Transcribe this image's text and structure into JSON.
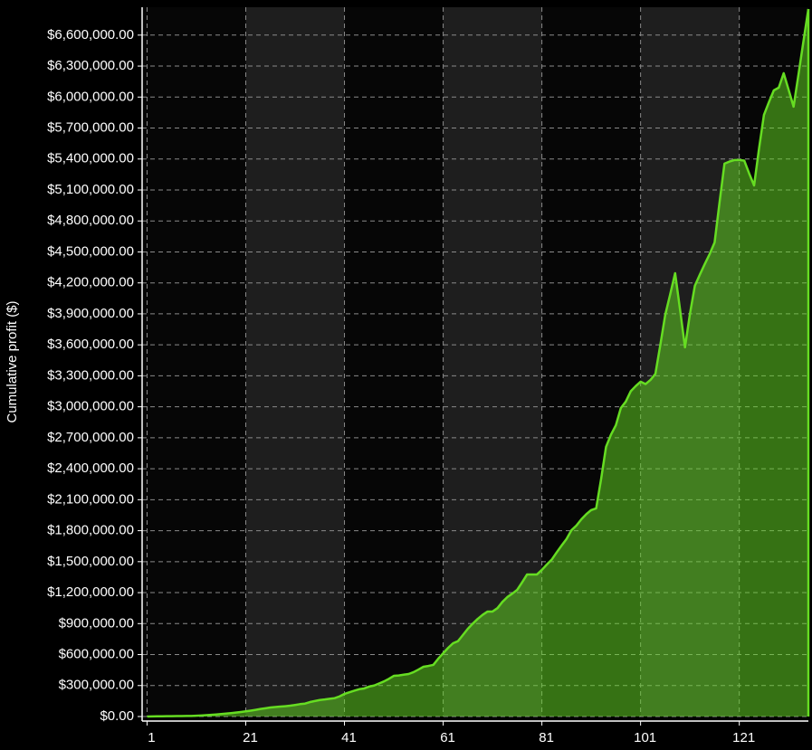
{
  "chart_data": {
    "type": "area",
    "y_label": "Cumulative profit ($)",
    "color": "#66dd22",
    "x": [
      1,
      2,
      3,
      4,
      5,
      6,
      7,
      8,
      9,
      10,
      11,
      12,
      13,
      14,
      15,
      16,
      17,
      18,
      19,
      20,
      21,
      22,
      23,
      24,
      25,
      26,
      27,
      28,
      29,
      30,
      31,
      32,
      33,
      34,
      35,
      36,
      37,
      38,
      39,
      40,
      41,
      42,
      43,
      44,
      45,
      46,
      47,
      48,
      49,
      50,
      51,
      52,
      53,
      54,
      55,
      56,
      57,
      58,
      59,
      60,
      61,
      62,
      63,
      64,
      65,
      66,
      67,
      68,
      69,
      70,
      71,
      72,
      73,
      74,
      75,
      76,
      77,
      78,
      79,
      80,
      81,
      82,
      83,
      84,
      85,
      86,
      87,
      88,
      89,
      90,
      91,
      92,
      93,
      94,
      95,
      96,
      97,
      98,
      99,
      100,
      101,
      102,
      103,
      104,
      105,
      106,
      107,
      108,
      109,
      110,
      111,
      112,
      113,
      114,
      115,
      116,
      117,
      118,
      119,
      120,
      121,
      122,
      123,
      124,
      125,
      126,
      127,
      128,
      129,
      130,
      131,
      132,
      133,
      134,
      135
    ],
    "values": [
      0,
      1000,
      2000,
      2000,
      3000,
      3000,
      4000,
      4000,
      5000,
      6000,
      8000,
      10000,
      13000,
      16000,
      20000,
      24000,
      28000,
      33000,
      38000,
      44000,
      50000,
      57000,
      65000,
      73000,
      80000,
      88000,
      92000,
      96000,
      100000,
      105000,
      112000,
      120000,
      125000,
      140000,
      150000,
      160000,
      165000,
      172000,
      178000,
      195000,
      219000,
      235000,
      250000,
      265000,
      272000,
      290000,
      300000,
      320000,
      340000,
      365000,
      394000,
      398000,
      405000,
      412000,
      430000,
      455000,
      482000,
      490000,
      500000,
      560000,
      613000,
      665000,
      710000,
      730000,
      790000,
      850000,
      900000,
      946000,
      985000,
      1017000,
      1017000,
      1050000,
      1110000,
      1157000,
      1190000,
      1227000,
      1300000,
      1376000,
      1376000,
      1376000,
      1420000,
      1472000,
      1520000,
      1590000,
      1656000,
      1720000,
      1805000,
      1850000,
      1910000,
      1960000,
      2000000,
      2016000,
      2300000,
      2612000,
      2730000,
      2822000,
      2988000,
      3050000,
      3150000,
      3200000,
      3243000,
      3220000,
      3260000,
      3318000,
      3600000,
      3891000,
      4090000,
      4294000,
      3940000,
      3576000,
      3900000,
      4172000,
      4280000,
      4382000,
      4480000,
      4592000,
      4980000,
      5355000,
      5375000,
      5390000,
      5390000,
      5385000,
      5260000,
      5144000,
      5500000,
      5828000,
      5950000,
      6065000,
      6091000,
      6231000,
      6070000,
      5907000,
      6220000,
      6540000,
      6853000
    ],
    "xlim": [
      0,
      135
    ],
    "xticks": [
      1,
      21,
      41,
      61,
      81,
      101,
      121
    ],
    "ylim": [
      0,
      6870000
    ],
    "yticks": [
      {
        "value": 0,
        "label": "$0.00"
      },
      {
        "value": 300000,
        "label": "$300,000.00"
      },
      {
        "value": 600000,
        "label": "$600,000.00"
      },
      {
        "value": 900000,
        "label": "$900,000.00"
      },
      {
        "value": 1200000,
        "label": "$1,200,000.00"
      },
      {
        "value": 1500000,
        "label": "$1,500,000.00"
      },
      {
        "value": 1800000,
        "label": "$1,800,000.00"
      },
      {
        "value": 2100000,
        "label": "$2,100,000.00"
      },
      {
        "value": 2400000,
        "label": "$2,400,000.00"
      },
      {
        "value": 2700000,
        "label": "$2,700,000.00"
      },
      {
        "value": 3000000,
        "label": "$3,000,000.00"
      },
      {
        "value": 3300000,
        "label": "$3,300,000.00"
      },
      {
        "value": 3600000,
        "label": "$3,600,000.00"
      },
      {
        "value": 3900000,
        "label": "$3,900,000.00"
      },
      {
        "value": 4200000,
        "label": "$4,200,000.00"
      },
      {
        "value": 4500000,
        "label": "$4,500,000.00"
      },
      {
        "value": 4800000,
        "label": "$4,800,000.00"
      },
      {
        "value": 5100000,
        "label": "$5,100,000.00"
      },
      {
        "value": 5400000,
        "label": "$5,400,000.00"
      },
      {
        "value": 5700000,
        "label": "$5,700,000.00"
      },
      {
        "value": 6000000,
        "label": "$6,000,000.00"
      },
      {
        "value": 6300000,
        "label": "$6,300,000.00"
      },
      {
        "value": 6600000,
        "label": "$6,600,000.00"
      }
    ],
    "grid": true
  }
}
